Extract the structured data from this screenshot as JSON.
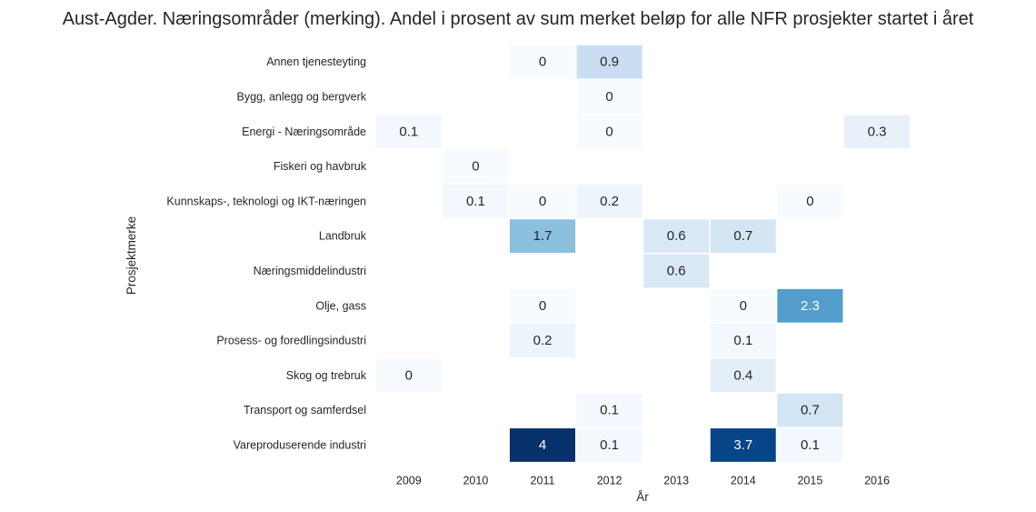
{
  "chart_data": {
    "type": "heatmap",
    "title": "Aust-Agder. Næringsområder (merking). Andel i prosent av sum merket beløp for alle NFR prosjekter startet i året",
    "xlabel": "År",
    "ylabel": "Prosjektmerke",
    "x": [
      "2009",
      "2010",
      "2011",
      "2012",
      "2013",
      "2014",
      "2015",
      "2016"
    ],
    "y": [
      "Annen tjenesteyting",
      "Bygg, anlegg og bergverk",
      "Energi - Næringsområde",
      "Fiskeri og havbruk",
      "Kunnskaps-, teknologi og IKT-næringen",
      "Landbruk",
      "Næringsmiddelindustri",
      "Olje, gass",
      "Prosess- og foredlingsindustri",
      "Skog og trebruk",
      "Transport og samferdsel",
      "Vareproduserende industri"
    ],
    "values": [
      [
        null,
        null,
        0,
        0.9,
        null,
        null,
        null,
        null
      ],
      [
        null,
        null,
        null,
        0,
        null,
        null,
        null,
        null
      ],
      [
        0.1,
        null,
        null,
        0,
        null,
        null,
        null,
        0.3
      ],
      [
        null,
        0,
        null,
        null,
        null,
        null,
        null,
        null
      ],
      [
        null,
        0.1,
        0,
        0.2,
        null,
        null,
        0,
        null
      ],
      [
        null,
        null,
        1.7,
        null,
        0.6,
        0.7,
        null,
        null
      ],
      [
        null,
        null,
        null,
        null,
        0.6,
        null,
        null,
        null
      ],
      [
        null,
        null,
        0,
        null,
        null,
        0,
        2.3,
        null
      ],
      [
        null,
        null,
        0.2,
        null,
        null,
        0.1,
        null,
        null
      ],
      [
        0,
        null,
        null,
        null,
        null,
        0.4,
        null,
        null
      ],
      [
        null,
        null,
        null,
        0.1,
        null,
        null,
        0.7,
        null
      ],
      [
        null,
        null,
        4,
        0.1,
        null,
        3.7,
        0.1,
        null
      ]
    ],
    "colormap": "Blues",
    "vmin": 0,
    "vmax": 4,
    "grid": false,
    "legend": "none"
  }
}
